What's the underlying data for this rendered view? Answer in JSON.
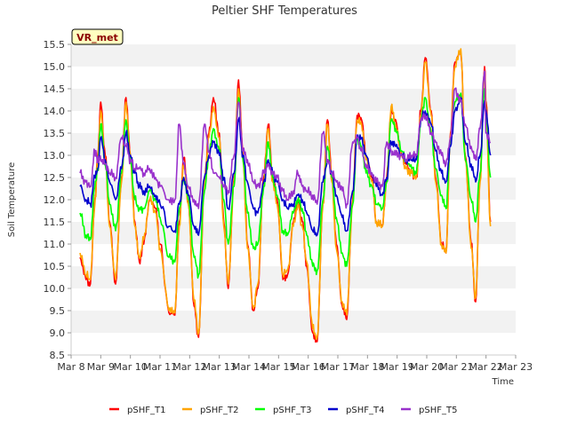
{
  "chart_data": {
    "type": "line",
    "title": "Peltier SHF Temperatures",
    "xlabel": "Time",
    "ylabel": "Soil Temperature",
    "ylim": [
      8.5,
      15.5
    ],
    "yticks": [
      8.5,
      9.0,
      9.5,
      10.0,
      10.5,
      11.0,
      11.5,
      12.0,
      12.5,
      13.0,
      13.5,
      14.0,
      14.5,
      15.0,
      15.5
    ],
    "ytick_labels": [
      "8.5",
      "9.0",
      "9.5",
      "10.0",
      "10.5",
      "11.0",
      "11.5",
      "12.0",
      "12.5",
      "13.0",
      "13.5",
      "14.0",
      "14.5",
      "15.0",
      "15.5"
    ],
    "xlim": [
      8,
      23
    ],
    "xticks": [
      8,
      9,
      10,
      11,
      12,
      13,
      14,
      15,
      16,
      17,
      18,
      19,
      20,
      21,
      22,
      23
    ],
    "xtick_labels": [
      "Mar 8",
      "Mar 9",
      "Mar 10",
      "Mar 11",
      "Mar 12",
      "Mar 13",
      "Mar 14",
      "Mar 15",
      "Mar 16",
      "Mar 17",
      "Mar 18",
      "Mar 19",
      "Mar 20",
      "Mar 21",
      "Mar 22",
      "Mar 23"
    ],
    "grid": "horizontal bands",
    "legend_position": "bottom",
    "annotation": "VR_met",
    "series": [
      {
        "name": "pSHF_T1",
        "color": "#ff0000",
        "x": [
          8.3,
          8.5,
          8.65,
          8.8,
          8.9,
          9.0,
          9.15,
          9.3,
          9.5,
          9.7,
          9.85,
          10.0,
          10.15,
          10.3,
          10.45,
          10.65,
          10.85,
          11.0,
          11.3,
          11.5,
          11.65,
          11.8,
          11.95,
          12.15,
          12.3,
          12.5,
          12.65,
          12.8,
          13.0,
          13.15,
          13.3,
          13.5,
          13.65,
          13.8,
          13.95,
          14.15,
          14.3,
          14.5,
          14.65,
          14.8,
          14.95,
          15.15,
          15.3,
          15.5,
          15.65,
          15.8,
          15.95,
          16.15,
          16.3,
          16.5,
          16.65,
          16.8,
          16.95,
          17.15,
          17.3,
          17.5,
          17.65,
          17.8,
          17.95,
          18.15,
          18.3,
          18.5,
          18.65,
          18.8,
          18.95,
          19.15,
          19.3,
          19.5,
          19.65,
          19.8,
          19.95,
          20.15,
          20.3,
          20.5,
          20.65,
          20.8,
          20.95,
          21.15,
          21.3,
          21.5,
          21.65,
          21.8,
          21.95,
          22.0,
          22.15
        ],
        "y": [
          10.7,
          10.2,
          10.1,
          12.0,
          13.0,
          14.2,
          13.0,
          11.5,
          10.1,
          12.5,
          14.3,
          13.0,
          11.5,
          10.6,
          11.0,
          12.0,
          11.8,
          11.0,
          9.45,
          9.4,
          11.5,
          12.95,
          12.0,
          9.6,
          8.9,
          12.5,
          13.5,
          14.3,
          13.5,
          11.5,
          10.0,
          12.5,
          14.7,
          13.0,
          11.0,
          9.5,
          10.0,
          12.5,
          13.7,
          12.5,
          12.0,
          10.2,
          10.3,
          11.5,
          12.0,
          11.5,
          10.5,
          9.0,
          8.8,
          12.0,
          13.8,
          12.5,
          11.0,
          9.6,
          9.3,
          12.0,
          13.9,
          13.8,
          13.0,
          12.5,
          11.5,
          11.4,
          12.5,
          14.0,
          13.8,
          13.0,
          12.8,
          12.6,
          12.5,
          14.0,
          15.2,
          14.0,
          12.5,
          11.0,
          10.8,
          13.5,
          15.1,
          15.3,
          13.0,
          11.0,
          9.7,
          12.5,
          15.0,
          14.2,
          11.5
        ]
      },
      {
        "name": "pSHF_T2",
        "color": "#ffa500",
        "x": [
          8.3,
          8.5,
          8.65,
          8.8,
          8.9,
          9.0,
          9.15,
          9.3,
          9.5,
          9.7,
          9.85,
          10.0,
          10.15,
          10.3,
          10.45,
          10.65,
          10.85,
          11.0,
          11.3,
          11.5,
          11.65,
          11.8,
          11.95,
          12.15,
          12.3,
          12.5,
          12.65,
          12.8,
          13.0,
          13.15,
          13.3,
          13.5,
          13.65,
          13.8,
          13.95,
          14.15,
          14.3,
          14.5,
          14.65,
          14.8,
          14.95,
          15.15,
          15.3,
          15.5,
          15.65,
          15.8,
          15.95,
          16.15,
          16.3,
          16.5,
          16.65,
          16.8,
          16.95,
          17.15,
          17.3,
          17.5,
          17.65,
          17.8,
          17.95,
          18.15,
          18.3,
          18.5,
          18.65,
          18.8,
          18.95,
          19.15,
          19.3,
          19.5,
          19.65,
          19.8,
          19.95,
          20.15,
          20.3,
          20.5,
          20.65,
          20.8,
          20.95,
          21.15,
          21.3,
          21.5,
          21.65,
          21.8,
          21.95,
          22.0,
          22.15
        ],
        "y": [
          10.8,
          10.3,
          10.2,
          11.9,
          12.9,
          14.0,
          12.9,
          11.4,
          10.2,
          12.4,
          14.2,
          12.9,
          11.4,
          10.7,
          11.1,
          12.0,
          11.7,
          10.9,
          9.5,
          9.45,
          11.4,
          12.8,
          11.9,
          9.7,
          9.0,
          12.4,
          13.4,
          14.1,
          13.4,
          11.4,
          10.1,
          12.4,
          14.5,
          12.9,
          10.9,
          9.55,
          10.1,
          12.4,
          13.6,
          12.4,
          11.9,
          10.3,
          10.4,
          11.4,
          11.9,
          11.4,
          10.6,
          9.1,
          8.9,
          11.9,
          13.7,
          12.4,
          10.9,
          9.7,
          9.4,
          11.9,
          13.8,
          13.7,
          12.9,
          12.4,
          11.5,
          11.4,
          12.4,
          14.1,
          13.7,
          13.0,
          12.7,
          12.6,
          12.5,
          13.9,
          15.1,
          13.9,
          12.4,
          11.0,
          10.8,
          13.4,
          15.0,
          15.4,
          12.9,
          10.9,
          9.8,
          12.4,
          14.9,
          14.0,
          11.4
        ]
      },
      {
        "name": "pSHF_T3",
        "color": "#00ff00",
        "x": [
          8.3,
          8.5,
          8.65,
          8.8,
          8.9,
          9.0,
          9.15,
          9.3,
          9.5,
          9.7,
          9.85,
          10.0,
          10.15,
          10.3,
          10.45,
          10.65,
          10.85,
          11.0,
          11.3,
          11.5,
          11.65,
          11.8,
          11.95,
          12.15,
          12.3,
          12.5,
          12.65,
          12.8,
          13.0,
          13.15,
          13.3,
          13.5,
          13.65,
          13.8,
          13.95,
          14.15,
          14.3,
          14.5,
          14.65,
          14.8,
          14.95,
          15.15,
          15.3,
          15.5,
          15.65,
          15.8,
          15.95,
          16.15,
          16.3,
          16.5,
          16.65,
          16.8,
          16.95,
          17.15,
          17.3,
          17.5,
          17.65,
          17.8,
          17.95,
          18.15,
          18.3,
          18.5,
          18.65,
          18.8,
          18.95,
          19.15,
          19.3,
          19.5,
          19.65,
          19.8,
          19.95,
          20.15,
          20.3,
          20.5,
          20.65,
          20.8,
          20.95,
          21.15,
          21.3,
          21.5,
          21.65,
          21.8,
          21.95,
          22.0,
          22.15
        ],
        "y": [
          11.7,
          11.2,
          11.1,
          12.3,
          12.7,
          13.7,
          12.8,
          11.9,
          11.3,
          12.6,
          13.8,
          12.9,
          12.0,
          11.8,
          11.8,
          12.2,
          12.0,
          11.6,
          10.7,
          10.6,
          11.8,
          12.5,
          12.0,
          10.7,
          10.3,
          12.2,
          13.0,
          13.6,
          13.1,
          12.0,
          11.0,
          12.3,
          14.3,
          12.9,
          11.7,
          10.9,
          11.0,
          12.3,
          13.3,
          12.5,
          12.1,
          11.3,
          11.2,
          11.7,
          12.0,
          11.8,
          11.2,
          10.5,
          10.4,
          12.0,
          13.2,
          12.5,
          11.6,
          10.8,
          10.5,
          11.9,
          13.4,
          13.2,
          12.6,
          12.3,
          11.9,
          11.8,
          12.4,
          13.8,
          13.6,
          13.1,
          12.9,
          12.7,
          12.6,
          13.8,
          14.3,
          13.5,
          12.7,
          12.1,
          11.8,
          13.3,
          14.2,
          14.4,
          12.9,
          12.0,
          11.5,
          12.6,
          14.5,
          13.9,
          12.5
        ]
      },
      {
        "name": "pSHF_T4",
        "color": "#0000cd",
        "x": [
          8.3,
          8.5,
          8.65,
          8.8,
          8.9,
          9.0,
          9.15,
          9.3,
          9.5,
          9.7,
          9.85,
          10.0,
          10.15,
          10.3,
          10.45,
          10.65,
          10.85,
          11.0,
          11.3,
          11.5,
          11.65,
          11.8,
          11.95,
          12.15,
          12.3,
          12.5,
          12.65,
          12.8,
          13.0,
          13.15,
          13.3,
          13.5,
          13.65,
          13.8,
          13.95,
          14.15,
          14.3,
          14.5,
          14.65,
          14.8,
          14.95,
          15.15,
          15.3,
          15.5,
          15.65,
          15.8,
          15.95,
          16.15,
          16.3,
          16.5,
          16.65,
          16.8,
          16.95,
          17.15,
          17.3,
          17.5,
          17.65,
          17.8,
          17.95,
          18.15,
          18.3,
          18.5,
          18.65,
          18.8,
          18.95,
          19.15,
          19.3,
          19.5,
          19.65,
          19.8,
          19.95,
          20.15,
          20.3,
          20.5,
          20.65,
          20.8,
          20.95,
          21.15,
          21.3,
          21.5,
          21.65,
          21.8,
          21.95,
          22.0,
          22.15
        ],
        "y": [
          12.3,
          12.0,
          11.9,
          12.5,
          12.7,
          13.4,
          12.9,
          12.4,
          12.0,
          12.7,
          13.5,
          13.0,
          12.6,
          12.3,
          12.2,
          12.3,
          12.1,
          11.9,
          11.4,
          11.3,
          11.9,
          12.5,
          12.1,
          11.4,
          11.2,
          12.5,
          13.0,
          13.3,
          13.0,
          12.5,
          11.8,
          12.6,
          13.8,
          13.0,
          12.4,
          11.8,
          11.7,
          12.4,
          12.9,
          12.6,
          12.4,
          12.0,
          11.8,
          11.9,
          12.1,
          12.0,
          11.7,
          11.3,
          11.2,
          12.4,
          12.9,
          12.6,
          12.1,
          11.6,
          11.3,
          12.2,
          13.4,
          13.4,
          13.0,
          12.6,
          12.3,
          12.1,
          12.5,
          13.3,
          13.2,
          13.0,
          12.9,
          12.9,
          12.9,
          13.8,
          14.0,
          13.7,
          13.1,
          12.6,
          12.4,
          13.2,
          14.0,
          14.3,
          13.3,
          12.8,
          12.4,
          13.0,
          14.2,
          14.0,
          13.0
        ]
      },
      {
        "name": "pSHF_T5",
        "color": "#9932cc",
        "x": [
          8.3,
          8.5,
          8.65,
          8.8,
          8.9,
          9.0,
          9.15,
          9.3,
          9.5,
          9.7,
          9.85,
          10.0,
          10.15,
          10.3,
          10.45,
          10.65,
          10.85,
          11.0,
          11.3,
          11.5,
          11.65,
          11.8,
          11.95,
          12.15,
          12.3,
          12.5,
          12.65,
          12.8,
          13.0,
          13.15,
          13.3,
          13.5,
          13.65,
          13.8,
          13.95,
          14.15,
          14.3,
          14.5,
          14.65,
          14.8,
          14.95,
          15.15,
          15.3,
          15.5,
          15.65,
          15.8,
          15.95,
          16.15,
          16.3,
          16.5,
          16.65,
          16.8,
          16.95,
          17.15,
          17.3,
          17.5,
          17.65,
          17.8,
          17.95,
          18.15,
          18.3,
          18.5,
          18.65,
          18.8,
          18.95,
          19.15,
          19.3,
          19.5,
          19.65,
          19.8,
          19.95,
          20.15,
          20.3,
          20.5,
          20.65,
          20.8,
          20.95,
          21.15,
          21.3,
          21.5,
          21.65,
          21.8,
          21.95,
          22.0,
          22.15
        ],
        "y": [
          12.6,
          12.4,
          12.3,
          13.1,
          12.9,
          12.9,
          12.8,
          12.6,
          12.5,
          13.4,
          13.2,
          12.9,
          12.7,
          12.7,
          12.6,
          12.7,
          12.5,
          12.3,
          12.0,
          12.0,
          13.7,
          12.8,
          12.3,
          12.0,
          11.8,
          13.7,
          13.1,
          12.6,
          12.5,
          12.3,
          12.2,
          13.0,
          14.2,
          13.1,
          12.9,
          12.4,
          12.3,
          12.6,
          12.8,
          12.6,
          12.5,
          12.2,
          12.0,
          12.2,
          12.6,
          12.3,
          12.2,
          12.1,
          11.9,
          13.5,
          12.9,
          12.6,
          12.4,
          12.2,
          11.9,
          13.3,
          13.4,
          13.1,
          12.8,
          12.6,
          12.4,
          12.3,
          13.3,
          13.1,
          13.0,
          13.0,
          12.9,
          13.0,
          13.0,
          13.8,
          13.9,
          13.5,
          13.3,
          13.0,
          12.8,
          13.4,
          14.5,
          14.2,
          13.7,
          13.2,
          12.9,
          13.6,
          14.9,
          13.5,
          13.3
        ]
      }
    ]
  }
}
